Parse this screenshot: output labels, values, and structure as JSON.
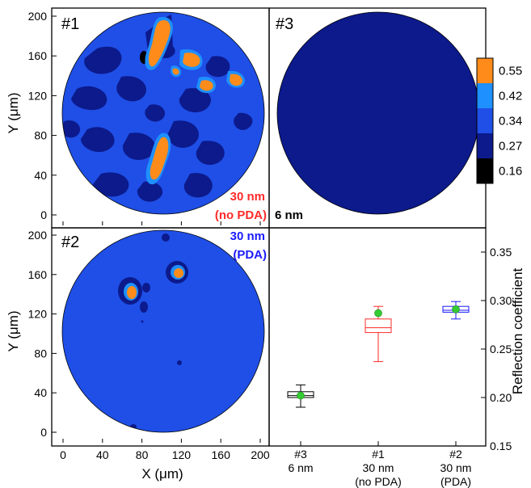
{
  "chart_data": [
    {
      "type": "heatmap",
      "panel": "#1",
      "panel_label": "#1",
      "sample_label": [
        "30 nm",
        "(no PDA)"
      ],
      "x_ticks": [
        0,
        40,
        80,
        120,
        160,
        200
      ],
      "y_ticks": [
        0,
        40,
        80,
        120,
        160,
        200
      ],
      "ylabel": "Y (μm)",
      "xlim": [
        0,
        200
      ],
      "ylim": [
        0,
        200
      ],
      "base_level": 0.34,
      "label_color": "#ff2a2a"
    },
    {
      "type": "heatmap",
      "panel": "#3",
      "panel_label": "#3",
      "sample_label": [
        "6 nm"
      ],
      "base_level": 0.27,
      "label_color": "#000000",
      "colorbar": {
        "levels": [
          "0.55",
          "0.42",
          "0.34",
          "0.27",
          "0.16"
        ],
        "colors": [
          "#ff8c1a",
          "#1e90ff",
          "#1f4fe6",
          "#0c1a8c",
          "#000000"
        ]
      }
    },
    {
      "type": "heatmap",
      "panel": "#2",
      "panel_label": "#2",
      "sample_label": [
        "30 nm",
        "(PDA)"
      ],
      "x_ticks": [
        0,
        40,
        80,
        120,
        160,
        200
      ],
      "y_ticks": [
        0,
        40,
        80,
        120,
        160,
        200
      ],
      "xlabel": "X (μm)",
      "ylabel": "Y (μm)",
      "xlim": [
        0,
        200
      ],
      "ylim": [
        0,
        200
      ],
      "base_level": 0.34,
      "label_color": "#1a1aff"
    },
    {
      "type": "boxplot",
      "ylabel": "Reflection coefficient",
      "ylim": [
        0.15,
        0.375
      ],
      "y_ticks": [
        "0.15",
        "0.20",
        "0.25",
        "0.30",
        "0.35"
      ],
      "categories": [
        {
          "lines": [
            "#3",
            "6 nm"
          ],
          "min": 0.19,
          "q1": 0.2,
          "median": 0.202,
          "q3": 0.206,
          "max": 0.213,
          "mean": 0.202,
          "color": "#000000"
        },
        {
          "lines": [
            "#1",
            "30 nm",
            "(no PDA)"
          ],
          "min": 0.237,
          "q1": 0.267,
          "median": 0.272,
          "q3": 0.281,
          "max": 0.294,
          "mean": 0.287,
          "color": "#ff2a2a"
        },
        {
          "lines": [
            "#2",
            "30 nm",
            "(PDA)"
          ],
          "min": 0.281,
          "q1": 0.288,
          "median": 0.29,
          "q3": 0.294,
          "max": 0.299,
          "mean": 0.291,
          "color": "#1a1aff"
        }
      ],
      "mean_marker_color": "#33cc33"
    }
  ]
}
